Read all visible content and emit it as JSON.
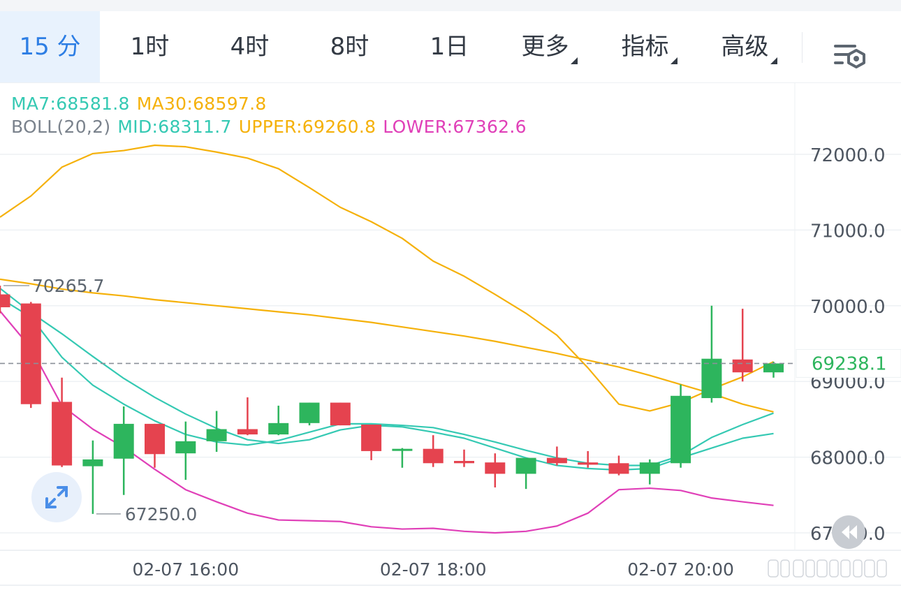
{
  "tabs": [
    {
      "label": "15 分",
      "active": true,
      "dropdown": false
    },
    {
      "label": "1时",
      "active": false,
      "dropdown": false
    },
    {
      "label": "4时",
      "active": false,
      "dropdown": false
    },
    {
      "label": "8时",
      "active": false,
      "dropdown": false
    },
    {
      "label": "1日",
      "active": false,
      "dropdown": false
    },
    {
      "label": "更多",
      "active": false,
      "dropdown": true
    },
    {
      "label": "指标",
      "active": false,
      "dropdown": true
    },
    {
      "label": "高级",
      "active": false,
      "dropdown": true
    }
  ],
  "legend": {
    "ma7": "MA7:68581.8",
    "ma30": "MA30:68597.8",
    "boll": "BOLL(20,2)",
    "mid": "MID:68311.7",
    "upper": "UPPER:69260.8",
    "lower": "LOWER:67362.6"
  },
  "colors": {
    "up": "#2db55d",
    "down": "#e5434f",
    "ma7": "#35c9b3",
    "ma30": "#f5b10a",
    "mid": "#35c9b3",
    "upper": "#f5b10a",
    "lower": "#e040b8",
    "price": "#2db55d",
    "accent": "#2d7ee4"
  },
  "icons": {
    "settings": "chart-settings-icon",
    "expand": "expand-icon",
    "rewind": "rewind-icon"
  },
  "chart_data": {
    "type": "candlestick",
    "ylim": [
      66950,
      72850
    ],
    "y_ticks": [
      {
        "value": 72000,
        "label": "72000.0"
      },
      {
        "value": 71000,
        "label": "71000.0"
      },
      {
        "value": 70000,
        "label": "70000.0"
      },
      {
        "value": 69000,
        "label": "69000.0"
      },
      {
        "value": 68000,
        "label": "68000.0"
      },
      {
        "value": 67000,
        "label": "67000.0"
      }
    ],
    "x_ticks": [
      {
        "index": 6,
        "label": "02-07 16:00"
      },
      {
        "index": 14,
        "label": "02-07 18:00"
      },
      {
        "index": 22,
        "label": "02-07 20:00"
      }
    ],
    "current_price": {
      "value": 69238.1,
      "label": "69238.1"
    },
    "max_marker": {
      "index": 0,
      "value": 70265.7,
      "label": "70265.7"
    },
    "min_marker": {
      "index": 3,
      "value": 67250.0,
      "label": "67250.0"
    },
    "candles": [
      {
        "o": 70150,
        "c": 69980,
        "h": 70265.7,
        "l": 69900
      },
      {
        "o": 70030,
        "c": 68700,
        "h": 70050,
        "l": 68650
      },
      {
        "o": 68730,
        "c": 67890,
        "h": 69050,
        "l": 67870
      },
      {
        "o": 67880,
        "c": 67970,
        "h": 68220,
        "l": 67250.0
      },
      {
        "o": 67980,
        "c": 68440,
        "h": 68670,
        "l": 67500
      },
      {
        "o": 68440,
        "c": 68040,
        "h": 68440,
        "l": 67860
      },
      {
        "o": 68050,
        "c": 68210,
        "h": 68470,
        "l": 67700
      },
      {
        "o": 68210,
        "c": 68370,
        "h": 68610,
        "l": 68070
      },
      {
        "o": 68370,
        "c": 68300,
        "h": 68790,
        "l": 68290
      },
      {
        "o": 68300,
        "c": 68450,
        "h": 68680,
        "l": 68290
      },
      {
        "o": 68450,
        "c": 68720,
        "h": 68720,
        "l": 68420
      },
      {
        "o": 68720,
        "c": 68420,
        "h": 68720,
        "l": 68420
      },
      {
        "o": 68430,
        "c": 68080,
        "h": 68430,
        "l": 67960
      },
      {
        "o": 68090,
        "c": 68110,
        "h": 68120,
        "l": 67860
      },
      {
        "o": 68110,
        "c": 67920,
        "h": 68290,
        "l": 67870
      },
      {
        "o": 67950,
        "c": 67920,
        "h": 68100,
        "l": 67870
      },
      {
        "o": 67930,
        "c": 67780,
        "h": 68050,
        "l": 67600
      },
      {
        "o": 67780,
        "c": 67990,
        "h": 67990,
        "l": 67580
      },
      {
        "o": 67990,
        "c": 67920,
        "h": 68140,
        "l": 67890
      },
      {
        "o": 67930,
        "c": 67900,
        "h": 68080,
        "l": 67860
      },
      {
        "o": 67920,
        "c": 67780,
        "h": 68020,
        "l": 67760
      },
      {
        "o": 67780,
        "c": 67930,
        "h": 67970,
        "l": 67640
      },
      {
        "o": 67920,
        "c": 68810,
        "h": 68960,
        "l": 67860
      },
      {
        "o": 68780,
        "c": 69300,
        "h": 70000,
        "l": 68720
      },
      {
        "o": 69290,
        "c": 69120,
        "h": 69960,
        "l": 69000
      },
      {
        "o": 69120,
        "c": 69238.1,
        "h": 69260,
        "l": 69050
      }
    ],
    "series": [
      {
        "name": "MA7",
        "values": [
          70100,
          69850,
          69320,
          68950,
          68700,
          68480,
          68300,
          68200,
          68160,
          68220,
          68330,
          68440,
          68440,
          68420,
          68390,
          68300,
          68200,
          68090,
          67990,
          67920,
          67890,
          67890,
          68020,
          68260,
          68430,
          68581.8
        ]
      },
      {
        "name": "MA30",
        "values": [
          70350,
          70290,
          70220,
          70170,
          70130,
          70080,
          70040,
          70000,
          69960,
          69920,
          69880,
          69830,
          69780,
          69720,
          69660,
          69600,
          69530,
          69450,
          69370,
          69280,
          69190,
          69080,
          68960,
          68840,
          68700,
          68597.8
        ]
      },
      {
        "name": "MID",
        "values": [
          70230,
          69910,
          69630,
          69330,
          69040,
          68790,
          68570,
          68380,
          68230,
          68180,
          68230,
          68360,
          68420,
          68400,
          68330,
          68250,
          68120,
          67990,
          67890,
          67850,
          67830,
          67850,
          67990,
          68120,
          68250,
          68311.7
        ]
      },
      {
        "name": "UPPER",
        "values": [
          71170,
          71450,
          71830,
          72010,
          72050,
          72120,
          72100,
          72030,
          71950,
          71810,
          71560,
          71300,
          71110,
          70890,
          70590,
          70390,
          70150,
          69900,
          69610,
          69180,
          68700,
          68610,
          68720,
          68900,
          69060,
          69260.8
        ]
      },
      {
        "name": "LOWER",
        "values": [
          69930,
          69440,
          68680,
          68370,
          68130,
          67840,
          67570,
          67410,
          67260,
          67170,
          67160,
          67150,
          67080,
          67050,
          67060,
          67020,
          67000,
          67020,
          67090,
          67260,
          67570,
          67590,
          67560,
          67460,
          67410,
          67362.6
        ]
      }
    ]
  },
  "footer": {
    "watermark": "chart-footer-logo"
  }
}
